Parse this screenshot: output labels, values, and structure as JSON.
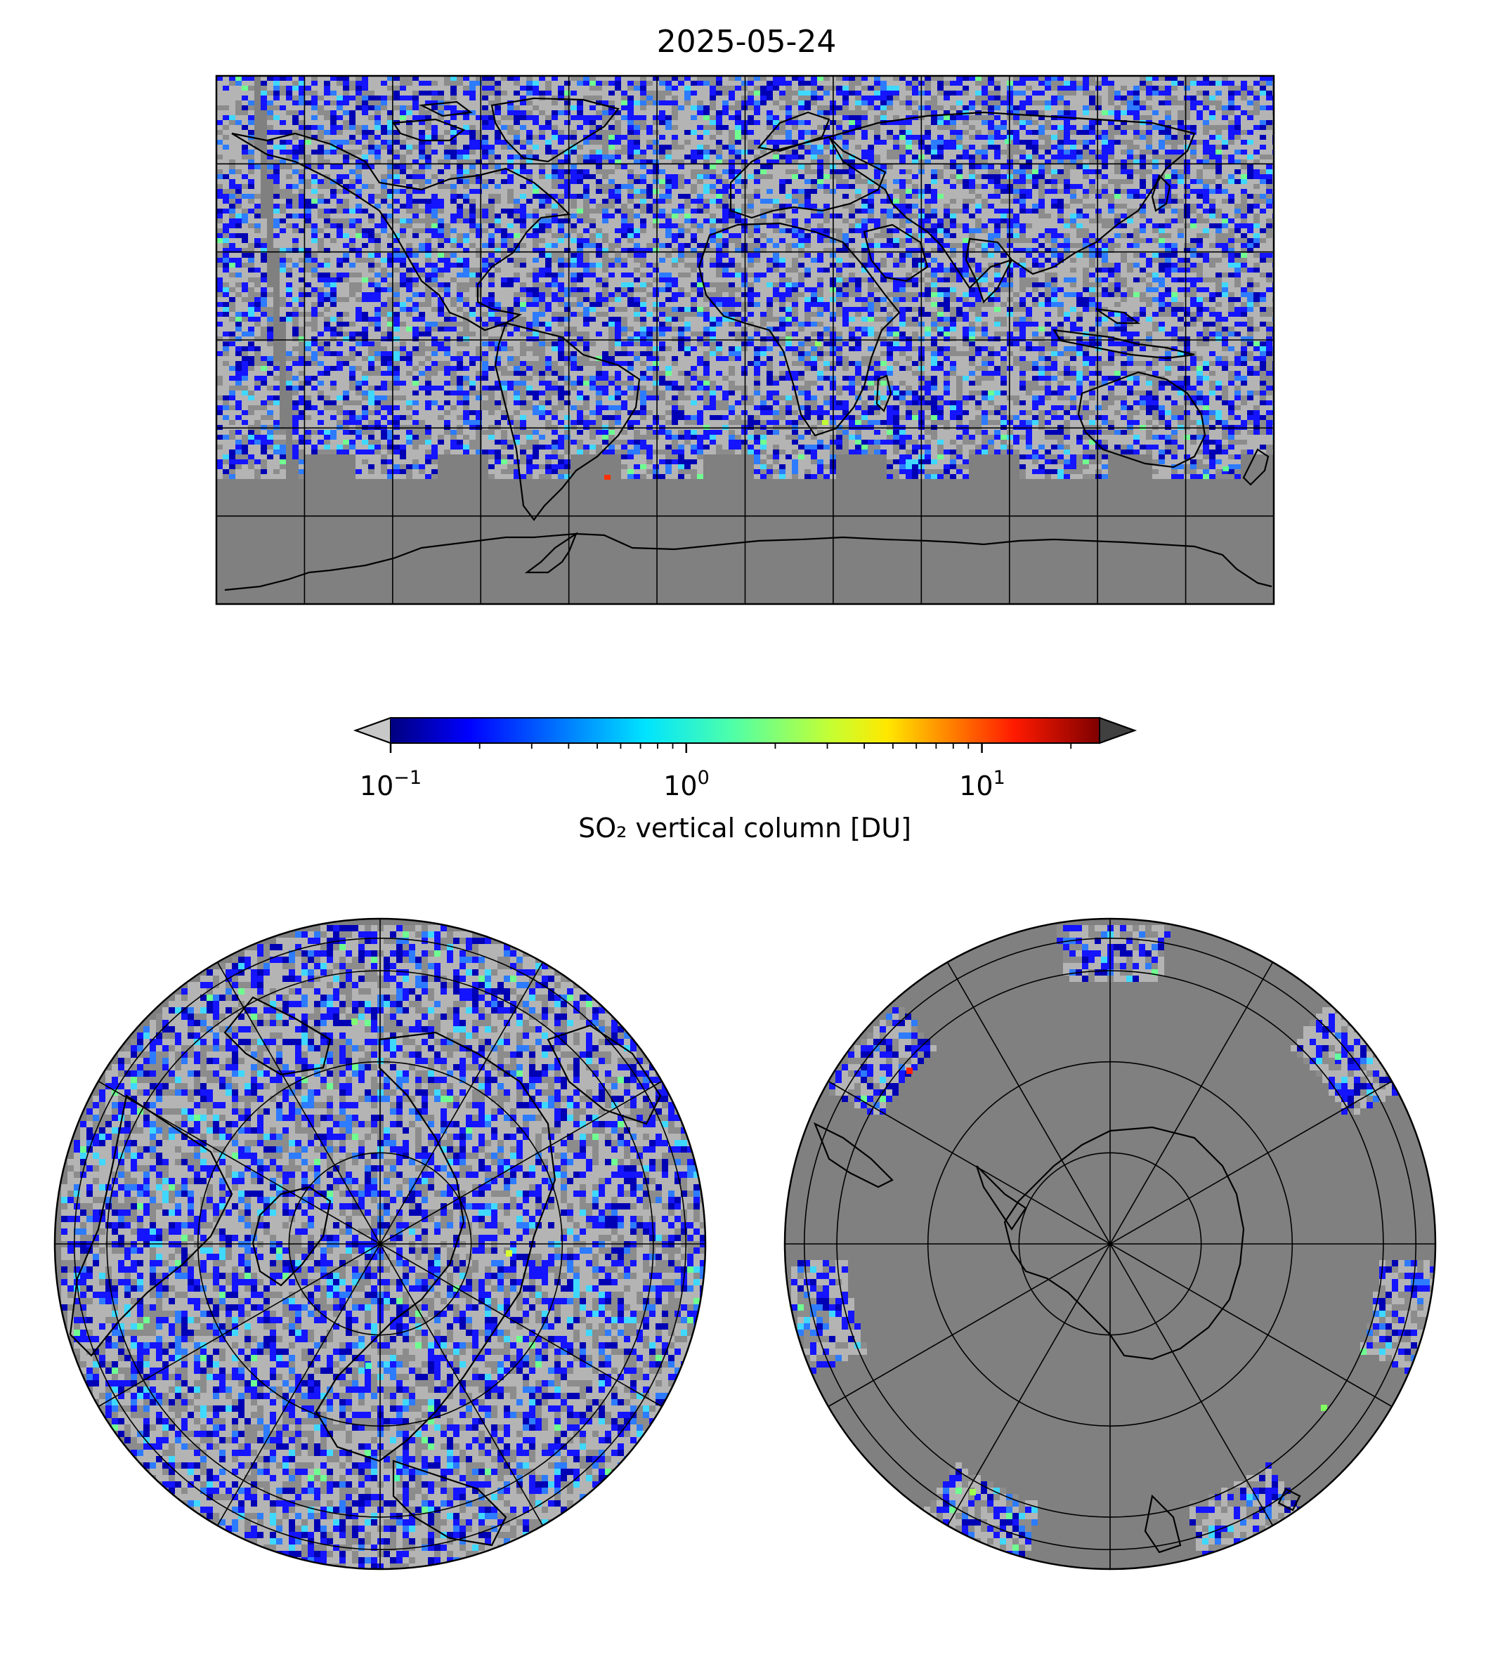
{
  "title": "2025-05-24",
  "colorbar": {
    "label": "SO₂ vertical column [DU]",
    "scale": "log",
    "range": [
      0.1,
      25
    ],
    "extend": "both",
    "colormap": "jet",
    "under_color": "#c8c8c8",
    "over_color": "#404040",
    "major_ticks": [
      {
        "base": "10",
        "exp": "−1",
        "value": 0.1
      },
      {
        "base": "10",
        "exp": "0",
        "value": 1
      },
      {
        "base": "10",
        "exp": "1",
        "value": 10
      }
    ]
  },
  "maps": [
    {
      "name": "global",
      "projection": "plate-carree",
      "background": "#808080"
    },
    {
      "name": "north-polar",
      "projection": "north-polar-stereographic",
      "background": "#808080"
    },
    {
      "name": "south-polar",
      "projection": "south-polar-stereographic",
      "background": "#808080"
    }
  ],
  "colors": {
    "no_data": "#808080",
    "below_range_light": "#b4b4b4",
    "below_range_dark": "#8c8c8c",
    "coastline": "#000000",
    "grid": "#000000"
  }
}
